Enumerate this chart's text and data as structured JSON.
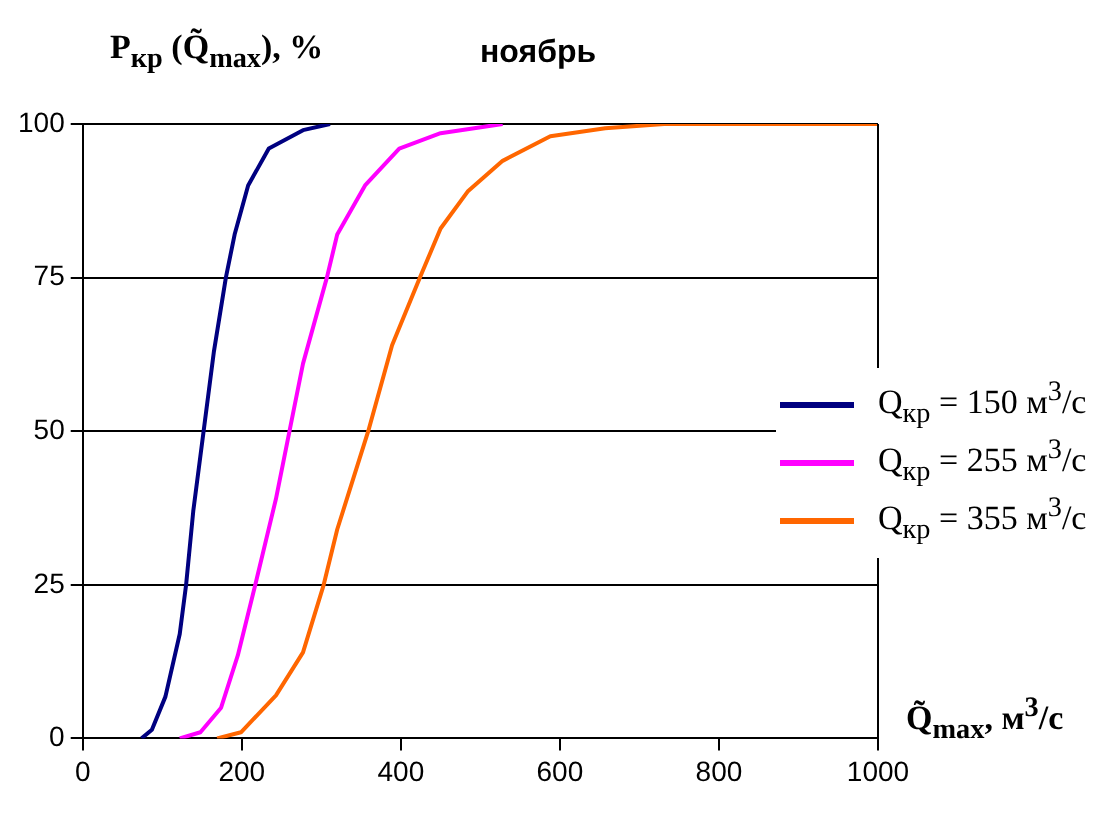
{
  "chart_data": {
    "type": "line",
    "title": "ноябрь",
    "ylabel": "P$_{кр}$ (Q̃$_{max}$), %",
    "xlabel": "Q̃$_{max}$, м$^{3}$/с",
    "xlim": [
      0,
      1000
    ],
    "xticks": [
      0,
      200,
      400,
      600,
      800,
      1000
    ],
    "ylim": [
      0,
      100
    ],
    "yticks": [
      0,
      25,
      50,
      75,
      100
    ],
    "grid": "y",
    "legend": "right",
    "marker": "none",
    "line_style": "solid",
    "series": [
      {
        "name": "Q$_{кр}$ = 150 м$^{3}$/с",
        "color": "#000080",
        "x": [
          74,
          87,
          104,
          122,
          130,
          139,
          152,
          165,
          180,
          191,
          208,
          234,
          277,
          311
        ],
        "values": [
          0,
          1.4,
          6.8,
          17,
          25,
          37,
          50,
          63,
          75,
          82,
          90,
          96,
          99,
          100
        ]
      },
      {
        "name": "Q$_{кр}$ = 255 м$^{3}$/с",
        "color": "#ff00ff",
        "x": [
          122,
          148,
          174,
          195,
          217,
          243,
          260,
          277,
          307,
          320,
          355,
          398,
          450,
          528
        ],
        "values": [
          0,
          1,
          5,
          13.5,
          25,
          39,
          50,
          61,
          75,
          82,
          90,
          96,
          98.5,
          100
        ]
      },
      {
        "name": "Q$_{кр}$ = 355 м$^{3}$/с",
        "color": "#ff6600",
        "x": [
          169,
          199,
          243,
          277,
          303,
          320,
          359,
          389,
          424,
          450,
          484,
          528,
          588,
          657,
          731,
          1000
        ],
        "values": [
          0,
          1,
          7,
          14,
          25,
          34,
          50,
          64,
          75,
          83,
          89,
          94,
          98,
          99.3,
          100,
          100
        ]
      }
    ]
  }
}
